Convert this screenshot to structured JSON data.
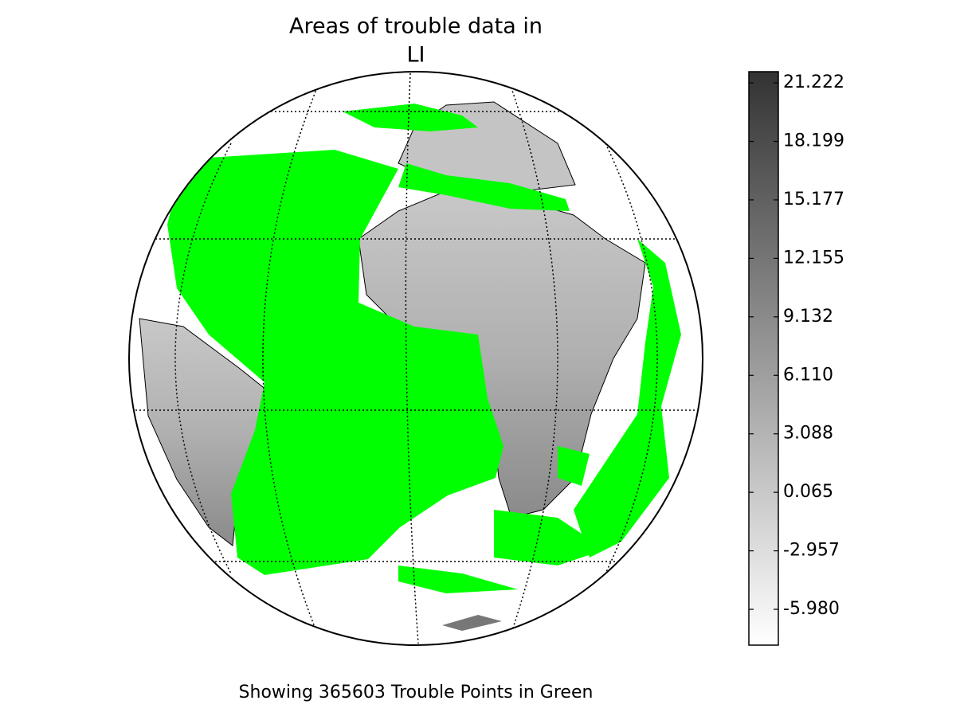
{
  "chart_data": {
    "type": "map",
    "title": [
      "Areas of trouble data in",
      "LI"
    ],
    "caption": "Showing 365603 Trouble Points in Green",
    "colorbar": {
      "clim": [
        -7.83,
        21.8
      ],
      "ticks": [
        21.222,
        18.199,
        15.177,
        12.155,
        9.132,
        {
          "value": 6.11,
          "label": "6.110"
        },
        3.088,
        0.065,
        -2.957,
        {
          "value": -5.98,
          "label": "-5.980"
        }
      ],
      "colors": [
        "#ffffff",
        "#333333"
      ]
    },
    "highlight_color": "#00ff00"
  }
}
